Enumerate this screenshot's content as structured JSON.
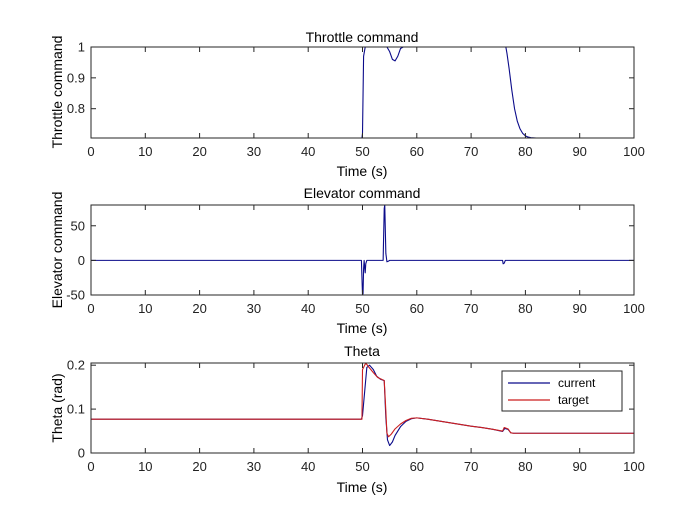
{
  "figure": {
    "background": "#ffffff",
    "axis_color": "#262626"
  },
  "chart_data": [
    {
      "type": "line",
      "title": "Throttle command",
      "xlabel": "Time (s)",
      "ylabel": "Throttle command",
      "xlim": [
        0,
        100
      ],
      "ylim": [
        0.705,
        1.0
      ],
      "xticks": [
        0,
        10,
        20,
        30,
        40,
        50,
        60,
        70,
        80,
        90,
        100
      ],
      "yticks": [
        0.8,
        0.9,
        1
      ],
      "ytick_labels": [
        "0.8",
        "0.9",
        "1"
      ],
      "series": [
        {
          "color": "#0b0b8a",
          "x": [
            0,
            49.9,
            50.0,
            50.2,
            50.5,
            54.5,
            55.0,
            55.5,
            56.0,
            56.5,
            57.0,
            57.5,
            58.0,
            76.4,
            76.6,
            77.0,
            77.5,
            78.0,
            78.5,
            79.0,
            79.5,
            80.0,
            80.5,
            81.0,
            82.0,
            100
          ],
          "y": [
            0.705,
            0.705,
            0.72,
            0.97,
            1.0,
            1.0,
            0.985,
            0.96,
            0.955,
            0.97,
            0.995,
            1.0,
            1.0,
            1.0,
            0.98,
            0.93,
            0.86,
            0.8,
            0.76,
            0.735,
            0.72,
            0.712,
            0.708,
            0.706,
            0.705,
            0.705
          ]
        }
      ]
    },
    {
      "type": "line",
      "title": "Elevator command",
      "xlabel": "Time (s)",
      "ylabel": "Elevator command",
      "xlim": [
        0,
        100
      ],
      "ylim": [
        -50,
        80
      ],
      "xticks": [
        0,
        10,
        20,
        30,
        40,
        50,
        60,
        70,
        80,
        90,
        100
      ],
      "yticks": [
        -50,
        0,
        50
      ],
      "ytick_labels": [
        "-50",
        "0",
        "50"
      ],
      "series": [
        {
          "color": "#0b0b8a",
          "x": [
            0,
            49.8,
            50.0,
            50.1,
            50.2,
            50.3,
            50.4,
            50.5,
            50.6,
            50.8,
            51.0,
            53.8,
            54.0,
            54.1,
            54.3,
            54.5,
            54.8,
            55.0,
            75.8,
            75.9,
            76.1,
            76.3,
            100
          ],
          "y": [
            0,
            0,
            -50,
            -48,
            -12,
            0,
            -10,
            -18,
            -5,
            0,
            0,
            0,
            75,
            80,
            10,
            -2,
            -1,
            0,
            0,
            -5,
            -4,
            0,
            0
          ]
        }
      ]
    },
    {
      "type": "line",
      "title": "Theta",
      "xlabel": "Time (s)",
      "ylabel": "Theta (rad)",
      "xlim": [
        0,
        100
      ],
      "ylim": [
        0,
        0.205
      ],
      "xticks": [
        0,
        10,
        20,
        30,
        40,
        50,
        60,
        70,
        80,
        90,
        100
      ],
      "yticks": [
        0,
        0.1,
        0.2
      ],
      "ytick_labels": [
        "0",
        "0.1",
        "0.2"
      ],
      "legend": {
        "placement": "top-right",
        "entries": [
          "current",
          "target"
        ]
      },
      "series": [
        {
          "name": "current",
          "color": "#0b0b8a",
          "x": [
            0,
            49.8,
            50.0,
            50.4,
            50.8,
            51.3,
            52.0,
            52.6,
            53.3,
            54.0,
            54.3,
            54.6,
            55.0,
            55.5,
            56.0,
            57.0,
            58.0,
            59.0,
            60.0,
            62.0,
            64.0,
            66.0,
            68.0,
            70.0,
            72.0,
            74.0,
            75.8,
            76.2,
            76.8,
            77.3,
            77.8,
            100
          ],
          "y": [
            0.077,
            0.077,
            0.085,
            0.14,
            0.195,
            0.2,
            0.19,
            0.175,
            0.168,
            0.165,
            0.08,
            0.03,
            0.017,
            0.025,
            0.04,
            0.06,
            0.072,
            0.078,
            0.08,
            0.077,
            0.073,
            0.069,
            0.065,
            0.061,
            0.058,
            0.054,
            0.049,
            0.056,
            0.054,
            0.046,
            0.045,
            0.045
          ]
        },
        {
          "name": "target",
          "color": "#cc1f1f",
          "x": [
            0,
            49.9,
            50.0,
            50.6,
            51.2,
            52.0,
            52.8,
            53.5,
            54.0,
            54.2,
            54.5,
            54.8,
            55.3,
            56.0,
            57.0,
            58.0,
            59.0,
            60.0,
            62.0,
            64.0,
            66.0,
            68.0,
            70.0,
            72.0,
            74.0,
            75.8,
            76.1,
            76.8,
            77.3,
            77.8,
            100
          ],
          "y": [
            0.077,
            0.077,
            0.19,
            0.205,
            0.195,
            0.183,
            0.172,
            0.168,
            0.165,
            0.12,
            0.045,
            0.037,
            0.043,
            0.055,
            0.066,
            0.074,
            0.079,
            0.08,
            0.077,
            0.073,
            0.069,
            0.065,
            0.061,
            0.058,
            0.054,
            0.05,
            0.058,
            0.055,
            0.046,
            0.045,
            0.045
          ]
        }
      ]
    }
  ]
}
